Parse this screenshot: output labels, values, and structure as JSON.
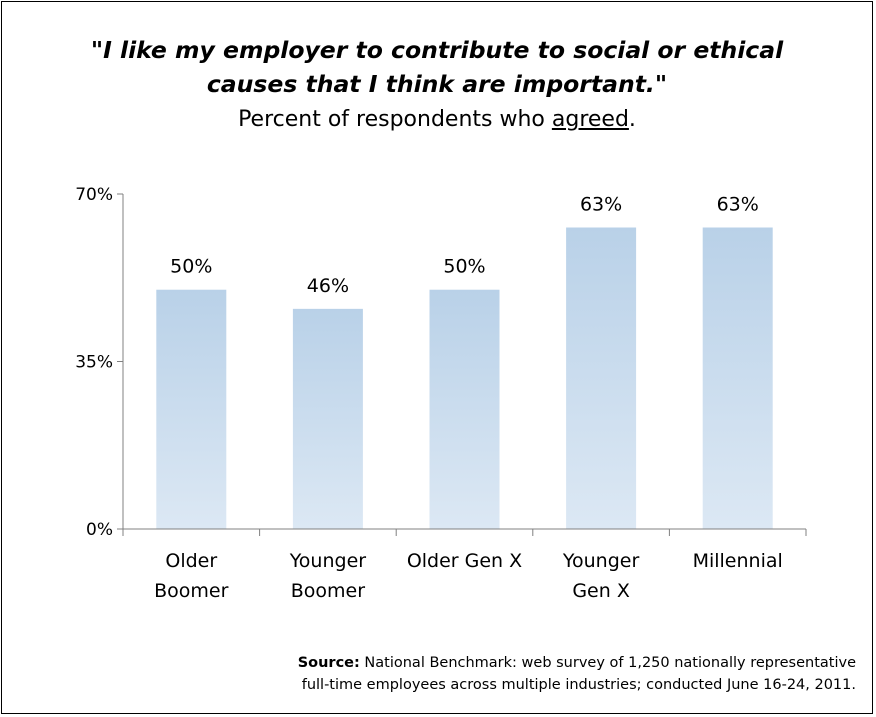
{
  "chart_data": {
    "type": "bar",
    "title_line1": "\"I like my employer to contribute to social or ethical",
    "title_line2": "causes that I think are important.\"",
    "subtitle_prefix": "Percent of respondents who ",
    "subtitle_underlined": "agreed",
    "subtitle_suffix": ".",
    "categories": [
      [
        "Older",
        "Boomer"
      ],
      [
        "Younger",
        "Boomer"
      ],
      [
        "Older Gen X"
      ],
      [
        "Younger",
        "Gen X"
      ],
      [
        "Millennial"
      ]
    ],
    "values": [
      50,
      46,
      50,
      63,
      63
    ],
    "data_labels": [
      "50%",
      "46%",
      "50%",
      "63%",
      "63%"
    ],
    "y_ticks": [
      {
        "value": 0,
        "label": "0%"
      },
      {
        "value": 35,
        "label": "35%"
      },
      {
        "value": 70,
        "label": "70%"
      }
    ],
    "ylim": [
      0,
      70
    ],
    "grid": false,
    "legend": "none",
    "bar_color_top": "#b9d1e8",
    "bar_color_bottom": "#dce8f4"
  },
  "source": {
    "label": "Source:",
    "line1": " National Benchmark: web survey of 1,250 nationally representative",
    "line2": "full-time employees across multiple industries; conducted June 16-24, 2011."
  }
}
